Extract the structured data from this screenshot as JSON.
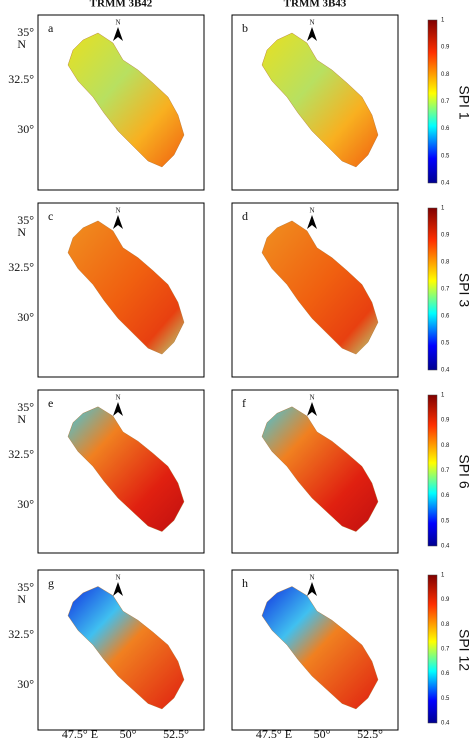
{
  "column_titles": [
    "TRMM 3B42",
    "TRMM 3B43"
  ],
  "rows": [
    {
      "label": "SPI 1",
      "panels": [
        "a",
        "b"
      ]
    },
    {
      "label": "SPI 3",
      "panels": [
        "c",
        "d"
      ]
    },
    {
      "label": "SPI 6",
      "panels": [
        "e",
        "f"
      ]
    },
    {
      "label": "SPI 12",
      "panels": [
        "g",
        "h"
      ]
    }
  ],
  "north_label": "N",
  "latitude_labels": [
    "35°",
    "32.5°",
    "30°"
  ],
  "latitude_hemisphere": "N",
  "longitude_labels": [
    "47.5° E",
    "50°",
    "52.5°"
  ],
  "colorbar_ticks": [
    1,
    0.9,
    0.8,
    0.7,
    0.6,
    0.5,
    0.4
  ]
}
